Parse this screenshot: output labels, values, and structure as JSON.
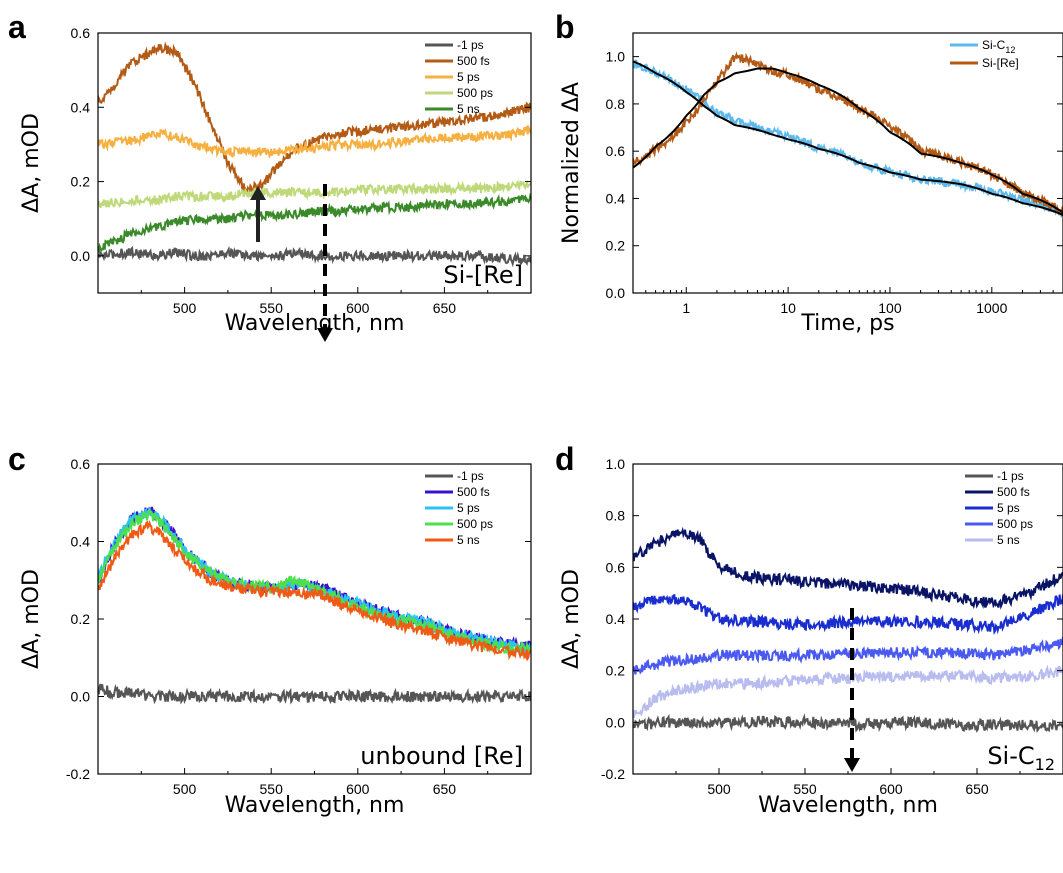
{
  "chart_data": [
    {
      "panel": "a",
      "type": "line",
      "xlabel": "Wavelength, nm",
      "ylabel": "ΔA, mOD",
      "xlim": [
        450,
        700
      ],
      "ylim": [
        -0.1,
        0.6
      ],
      "xticks": [
        500,
        550,
        600,
        650
      ],
      "yticks": [
        0.0,
        0.2,
        0.4,
        0.6
      ],
      "ytick_labels": [
        "0.0",
        "0.2",
        "0.4",
        "0.6"
      ],
      "annotation": "Si-[Re]",
      "legend_position": "top-right",
      "x": [
        450,
        470,
        485,
        495,
        505,
        515,
        525,
        535,
        545,
        555,
        565,
        575,
        590,
        610,
        630,
        650,
        670,
        690,
        700
      ],
      "series": [
        {
          "name": "-1 ps",
          "color": "#555555",
          "values": [
            0.0,
            0.01,
            0.0,
            0.01,
            0.0,
            0.0,
            0.01,
            0.0,
            0.0,
            0.0,
            0.01,
            0.0,
            0.0,
            0.0,
            0.0,
            0.0,
            0.0,
            -0.01,
            -0.01
          ]
        },
        {
          "name": "500 fs",
          "color": "#B35A14",
          "values": [
            0.41,
            0.52,
            0.56,
            0.55,
            0.47,
            0.36,
            0.25,
            0.18,
            0.19,
            0.25,
            0.29,
            0.31,
            0.33,
            0.34,
            0.35,
            0.36,
            0.37,
            0.39,
            0.4
          ]
        },
        {
          "name": "5 ps",
          "color": "#F5B041",
          "values": [
            0.3,
            0.31,
            0.33,
            0.32,
            0.3,
            0.29,
            0.28,
            0.28,
            0.28,
            0.28,
            0.29,
            0.29,
            0.3,
            0.3,
            0.31,
            0.32,
            0.32,
            0.33,
            0.34
          ]
        },
        {
          "name": "500 ps",
          "color": "#BFD97A",
          "values": [
            0.14,
            0.15,
            0.15,
            0.16,
            0.16,
            0.16,
            0.16,
            0.17,
            0.17,
            0.17,
            0.17,
            0.17,
            0.17,
            0.18,
            0.18,
            0.18,
            0.18,
            0.19,
            0.19
          ]
        },
        {
          "name": "5 ns",
          "color": "#3A8A2A",
          "values": [
            0.02,
            0.06,
            0.08,
            0.09,
            0.1,
            0.1,
            0.1,
            0.11,
            0.11,
            0.11,
            0.11,
            0.12,
            0.12,
            0.13,
            0.13,
            0.14,
            0.14,
            0.15,
            0.15
          ]
        }
      ]
    },
    {
      "panel": "b",
      "type": "line",
      "xlabel": "Time, ps",
      "ylabel": "Normalized ΔA",
      "xscale": "log",
      "xlim": [
        0.3,
        5000
      ],
      "ylim": [
        0.0,
        1.1
      ],
      "xticks": [
        1,
        10,
        100,
        1000
      ],
      "xtick_labels": [
        "1",
        "10",
        "100",
        "1000"
      ],
      "yticks": [
        0.0,
        0.2,
        0.4,
        0.6,
        0.8,
        1.0
      ],
      "ytick_labels": [
        "0.0",
        "0.2",
        "0.4",
        "0.6",
        "0.8",
        "1.0"
      ],
      "legend_position": "top-right",
      "x": [
        0.3,
        0.5,
        1,
        1.5,
        2,
        3,
        5,
        7,
        10,
        20,
        50,
        100,
        200,
        500,
        1000,
        2000,
        5000
      ],
      "series": [
        {
          "name": "Si-C12",
          "color": "#5DB9EC",
          "values": [
            0.97,
            0.93,
            0.86,
            0.81,
            0.76,
            0.73,
            0.7,
            0.68,
            0.66,
            0.61,
            0.55,
            0.51,
            0.48,
            0.46,
            0.43,
            0.39,
            0.33
          ]
        },
        {
          "name": "Si-[Re]",
          "color": "#B35A14",
          "values": [
            0.55,
            0.61,
            0.72,
            0.82,
            0.9,
            1.0,
            0.97,
            0.94,
            0.92,
            0.86,
            0.78,
            0.7,
            0.6,
            0.55,
            0.5,
            0.42,
            0.34
          ]
        }
      ],
      "fits": [
        {
          "color": "#000000",
          "values": [
            0.98,
            0.93,
            0.85,
            0.79,
            0.75,
            0.71,
            0.69,
            0.67,
            0.65,
            0.61,
            0.55,
            0.51,
            0.48,
            0.46,
            0.42,
            0.38,
            0.33
          ]
        },
        {
          "color": "#000000",
          "values": [
            0.53,
            0.62,
            0.75,
            0.84,
            0.89,
            0.93,
            0.95,
            0.95,
            0.93,
            0.88,
            0.78,
            0.68,
            0.59,
            0.55,
            0.5,
            0.42,
            0.34
          ]
        }
      ]
    },
    {
      "panel": "c",
      "type": "line",
      "xlabel": "Wavelength, nm",
      "ylabel": "ΔA, mOD",
      "xlim": [
        450,
        700
      ],
      "ylim": [
        -0.2,
        0.6
      ],
      "xticks": [
        500,
        550,
        600,
        650
      ],
      "yticks": [
        -0.2,
        0.0,
        0.2,
        0.4,
        0.6
      ],
      "ytick_labels": [
        "-0.2",
        "0.0",
        "0.2",
        "0.4",
        "0.6"
      ],
      "annotation": "unbound [Re]",
      "legend_position": "top-right",
      "x": [
        450,
        460,
        470,
        480,
        490,
        500,
        515,
        530,
        550,
        565,
        580,
        600,
        620,
        640,
        660,
        680,
        700
      ],
      "series": [
        {
          "name": "-1 ps",
          "color": "#555555",
          "values": [
            0.02,
            0.01,
            0.01,
            0.0,
            0.0,
            0.0,
            0.0,
            0.0,
            0.0,
            0.0,
            0.0,
            0.0,
            0.0,
            0.0,
            0.0,
            0.0,
            0.0
          ]
        },
        {
          "name": "500 fs",
          "color": "#3A10D0",
          "values": [
            0.3,
            0.4,
            0.46,
            0.48,
            0.44,
            0.38,
            0.32,
            0.29,
            0.28,
            0.29,
            0.28,
            0.24,
            0.21,
            0.19,
            0.16,
            0.14,
            0.13
          ]
        },
        {
          "name": "5 ps",
          "color": "#2BC4F2",
          "values": [
            0.31,
            0.4,
            0.46,
            0.48,
            0.44,
            0.38,
            0.32,
            0.29,
            0.28,
            0.29,
            0.27,
            0.24,
            0.21,
            0.19,
            0.16,
            0.14,
            0.12
          ]
        },
        {
          "name": "500 ps",
          "color": "#4CE04C",
          "values": [
            0.3,
            0.39,
            0.45,
            0.47,
            0.43,
            0.37,
            0.32,
            0.29,
            0.28,
            0.3,
            0.27,
            0.23,
            0.2,
            0.18,
            0.15,
            0.13,
            0.12
          ]
        },
        {
          "name": "5 ns",
          "color": "#F05A14",
          "values": [
            0.28,
            0.36,
            0.42,
            0.44,
            0.4,
            0.35,
            0.3,
            0.28,
            0.27,
            0.27,
            0.26,
            0.22,
            0.19,
            0.17,
            0.14,
            0.12,
            0.11
          ]
        }
      ]
    },
    {
      "panel": "d",
      "type": "line",
      "xlabel": "Wavelength, nm",
      "ylabel": "ΔA, mOD",
      "xlim": [
        450,
        700
      ],
      "ylim": [
        -0.2,
        1.0
      ],
      "xticks": [
        500,
        550,
        600,
        650
      ],
      "yticks": [
        -0.2,
        0.0,
        0.2,
        0.4,
        0.6,
        0.8,
        1.0
      ],
      "ytick_labels": [
        "-0.2",
        "0.0",
        "0.2",
        "0.4",
        "0.6",
        "0.8",
        "1.0"
      ],
      "annotation": "Si-C12",
      "legend_position": "top-right",
      "x": [
        450,
        465,
        480,
        490,
        500,
        520,
        540,
        560,
        580,
        600,
        620,
        640,
        660,
        680,
        700
      ],
      "series": [
        {
          "name": "-1 ps",
          "color": "#555555",
          "values": [
            -0.02,
            0.0,
            0.0,
            0.0,
            0.0,
            0.0,
            0.0,
            0.0,
            -0.01,
            0.0,
            0.0,
            -0.01,
            -0.01,
            -0.01,
            -0.01
          ]
        },
        {
          "name": "500 fs",
          "color": "#0A1466",
          "values": [
            0.64,
            0.7,
            0.74,
            0.7,
            0.6,
            0.56,
            0.55,
            0.54,
            0.53,
            0.52,
            0.5,
            0.48,
            0.46,
            0.5,
            0.57
          ]
        },
        {
          "name": "5 ps",
          "color": "#1A2ED0",
          "values": [
            0.45,
            0.48,
            0.47,
            0.44,
            0.4,
            0.39,
            0.38,
            0.38,
            0.39,
            0.39,
            0.39,
            0.38,
            0.37,
            0.42,
            0.48
          ]
        },
        {
          "name": "500 ps",
          "color": "#4A5AF0",
          "values": [
            0.2,
            0.23,
            0.24,
            0.25,
            0.26,
            0.26,
            0.26,
            0.26,
            0.27,
            0.27,
            0.27,
            0.27,
            0.26,
            0.28,
            0.31
          ]
        },
        {
          "name": "5 ns",
          "color": "#B8BCEE",
          "values": [
            0.03,
            0.1,
            0.13,
            0.14,
            0.15,
            0.15,
            0.16,
            0.17,
            0.17,
            0.18,
            0.18,
            0.18,
            0.17,
            0.18,
            0.2
          ]
        }
      ]
    }
  ]
}
